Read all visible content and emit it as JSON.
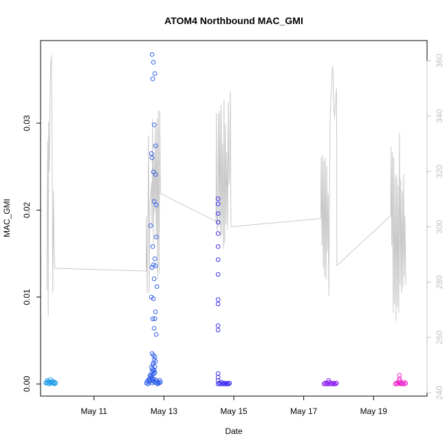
{
  "chart_data": {
    "type": "scatter",
    "title": "ATOM4 Northbound MAC_GMI",
    "xlabel": "Date",
    "ylabel": "MAC_GMI",
    "x_ticks": [
      "May 11",
      "May 13",
      "May 15",
      "May 17",
      "May 19"
    ],
    "x_tick_days": [
      11,
      13,
      15,
      17,
      19
    ],
    "xlim_days": [
      9.47,
      20.53
    ],
    "ylim": [
      -0.0014,
      0.0395
    ],
    "y_ticks": [
      0.0,
      0.01,
      0.02,
      0.03
    ],
    "y_tick_labels": [
      "0.00",
      "0.01",
      "0.02",
      "0.03"
    ],
    "y2lim": [
      238.8,
      367.3
    ],
    "y2_ticks": [
      240,
      260,
      280,
      300,
      320,
      340,
      360
    ],
    "y2_tick_labels": [
      "240",
      "260",
      "280",
      "300",
      "320",
      "340",
      "360"
    ],
    "grid": false,
    "colors": {
      "overlay_line": "#c8c8c8",
      "right_axis": "#c0c0c0",
      "axis": "#000000"
    },
    "series": [
      {
        "color": "#1e9be6",
        "x_days": [
          9.62,
          9.64,
          9.66,
          9.68,
          9.7,
          9.72,
          9.74,
          9.76,
          9.78,
          9.8,
          9.82,
          9.84,
          9.86,
          9.88,
          9.9
        ],
        "y": [
          0.0001,
          0.0002,
          0.0004,
          0.0001,
          0.0003,
          0.0,
          0.0002,
          0.0005,
          0.0001,
          0.0002,
          0.0003,
          0.0001,
          0.0,
          0.0002,
          0.0001
        ]
      },
      {
        "color": "#2f5fe8",
        "x_days": [
          12.5,
          12.52,
          12.54,
          12.56,
          12.58,
          12.6,
          12.62,
          12.64,
          12.66,
          12.68,
          12.7,
          12.72,
          12.74,
          12.76,
          12.78,
          12.8,
          12.82,
          12.84,
          12.86,
          12.88,
          12.9,
          12.66,
          12.7,
          12.74,
          12.68,
          12.72,
          12.76,
          12.64,
          12.66,
          12.7,
          12.76,
          12.72,
          12.78,
          12.62,
          12.78,
          12.68,
          12.74,
          12.7,
          12.76,
          12.66,
          12.72,
          12.8,
          12.64,
          12.7,
          12.76,
          12.68,
          12.74,
          12.72,
          12.78,
          12.66,
          12.7,
          12.74,
          12.72,
          12.76,
          12.7,
          12.68,
          12.74,
          12.64,
          12.68,
          12.72,
          12.7,
          12.66,
          12.74,
          12.68,
          12.6,
          12.62,
          12.66,
          12.7,
          12.58
        ],
        "y": [
          0.0001,
          0.0003,
          0.0,
          0.0005,
          0.0002,
          0.001,
          0.0004,
          0.0008,
          0.0001,
          0.0006,
          0.0003,
          0.0012,
          0.0002,
          0.0005,
          0.0001,
          0.0003,
          0.0,
          0.0002,
          0.0001,
          0.0004,
          0.0002,
          0.0379,
          0.037,
          0.0357,
          0.0351,
          0.0298,
          0.0274,
          0.0265,
          0.026,
          0.0244,
          0.0241,
          0.021,
          0.0206,
          0.0182,
          0.0169,
          0.0158,
          0.0144,
          0.0137,
          0.0136,
          0.0134,
          0.0121,
          0.0112,
          0.01,
          0.0098,
          0.0083,
          0.0075,
          0.0075,
          0.0064,
          0.0057,
          0.0035,
          0.0033,
          0.0031,
          0.0028,
          0.0026,
          0.0024,
          0.0022,
          0.002,
          0.0019,
          0.0017,
          0.0016,
          0.0015,
          0.0014,
          0.0013,
          0.0011,
          0.0006,
          0.0009,
          0.0007,
          0.0005,
          0.0004
        ]
      },
      {
        "color": "#3c2ef0",
        "x_days": [
          14.55,
          14.58,
          14.61,
          14.64,
          14.67,
          14.7,
          14.73,
          14.76,
          14.79,
          14.82,
          14.85,
          14.88,
          14.55,
          14.55,
          14.55,
          14.55,
          14.55,
          14.55,
          14.55,
          14.55,
          14.55,
          14.55,
          14.55,
          14.55,
          14.55,
          14.55,
          14.55
        ],
        "y": [
          0.0,
          0.0001,
          0.0,
          0.0002,
          0.0,
          0.0001,
          0.0,
          0.0,
          0.0001,
          0.0,
          0.0,
          0.0001,
          0.0213,
          0.0207,
          0.0196,
          0.0186,
          0.0173,
          0.0158,
          0.0143,
          0.0126,
          0.0097,
          0.0092,
          0.0067,
          0.0062,
          0.0012,
          0.0008,
          0.0004
        ]
      },
      {
        "color": "#8a1ff0",
        "x_days": [
          17.58,
          17.61,
          17.64,
          17.67,
          17.7,
          17.73,
          17.76,
          17.79,
          17.82,
          17.85,
          17.88,
          17.91,
          17.94,
          17.71
        ],
        "y": [
          0.0,
          0.0001,
          0.0,
          0.0001,
          0.0,
          0.0002,
          0.0,
          0.0001,
          0.0,
          0.0001,
          0.0,
          0.0,
          0.0001,
          0.0004
        ]
      },
      {
        "color": "#ee22c8",
        "x_days": [
          19.62,
          19.65,
          19.68,
          19.71,
          19.74,
          19.77,
          19.8,
          19.83,
          19.86,
          19.89,
          19.92,
          19.74,
          19.74,
          19.74
        ],
        "y": [
          0.0,
          0.0001,
          0.0,
          0.0002,
          0.0001,
          0.0,
          0.0001,
          0.0,
          0.0002,
          0.0,
          0.0001,
          0.001,
          0.0006,
          0.0004
        ]
      }
    ],
    "overlay_line": {
      "axis": "right",
      "x_days": [
        9.65,
        9.67,
        9.69,
        9.7,
        9.72,
        9.74,
        9.76,
        9.78,
        9.8,
        9.82,
        9.84,
        9.86,
        9.88,
        9.9,
        9.92,
        12.49,
        12.5,
        12.52,
        12.54,
        12.56,
        12.58,
        12.6,
        12.62,
        12.64,
        12.66,
        12.68,
        12.7,
        12.72,
        12.74,
        12.76,
        12.78,
        12.8,
        12.82,
        12.84,
        12.86,
        12.88,
        12.9,
        14.49,
        14.5,
        14.52,
        14.54,
        14.56,
        14.58,
        14.6,
        14.62,
        14.64,
        14.66,
        14.68,
        14.7,
        14.72,
        14.74,
        14.76,
        14.78,
        14.8,
        14.82,
        14.84,
        14.86,
        14.88,
        14.9,
        14.92,
        17.49,
        17.5,
        17.52,
        17.54,
        17.56,
        17.58,
        17.6,
        17.62,
        17.64,
        17.66,
        17.68,
        17.7,
        17.72,
        17.74,
        17.76,
        17.78,
        17.8,
        17.82,
        17.84,
        17.86,
        17.88,
        17.9,
        17.92,
        17.94,
        17.95,
        19.49,
        19.5,
        19.52,
        19.54,
        19.56,
        19.58,
        19.6,
        19.62,
        19.64,
        19.66,
        19.68,
        19.7,
        19.72,
        19.74,
        19.76,
        19.78,
        19.8,
        19.82,
        19.84,
        19.86,
        19.88,
        19.9,
        19.92
      ],
      "y": [
        277,
        331,
        268,
        338,
        320,
        347,
        358,
        362,
        326,
        276,
        313,
        291,
        285,
        285,
        285,
        284,
        304,
        276,
        300,
        333,
        276,
        309,
        311,
        316,
        300,
        339,
        293,
        327,
        305,
        336,
        296,
        339,
        281,
        342,
        283,
        342,
        312,
        302,
        341,
        298,
        302,
        341,
        300,
        342,
        296,
        344,
        297,
        330,
        292,
        346,
        294,
        337,
        301,
        327,
        299,
        345,
        315,
        320,
        349,
        300,
        303,
        325,
        293,
        326,
        285,
        324,
        282,
        325,
        281,
        322,
        291,
        312,
        275,
        314,
        341,
        347,
        352,
        358,
        356,
        345,
        339,
        343,
        347,
        350,
        286,
        304,
        329,
        293,
        327,
        269,
        325,
        272,
        318,
        266,
        319,
        271,
        315,
        269,
        334,
        279,
        317,
        276,
        313,
        278,
        319,
        282,
        304,
        279
      ]
    }
  }
}
